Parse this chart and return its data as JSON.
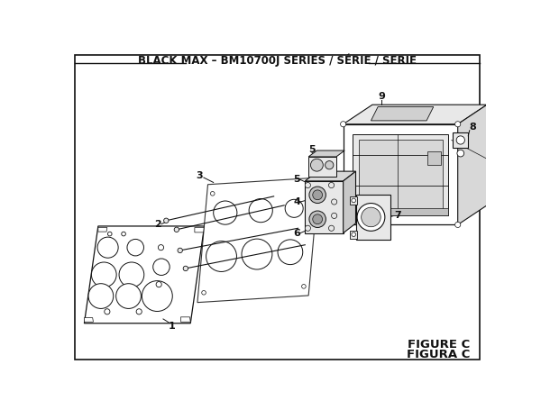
{
  "title": "BLACK MAX – BM10700J SERIES / SÉRIE / SERIE",
  "figure_label1": "FIGURE C",
  "figure_label2": "FIGURA C",
  "bg_color": "#ffffff",
  "line_color": "#111111",
  "title_fontsize": 8.5,
  "label_fontsize": 8,
  "fig_label_fontsize": 9.5,
  "white": "#ffffff",
  "light_gray": "#e8e8e8",
  "mid_gray": "#cccccc",
  "dark_gray": "#888888"
}
